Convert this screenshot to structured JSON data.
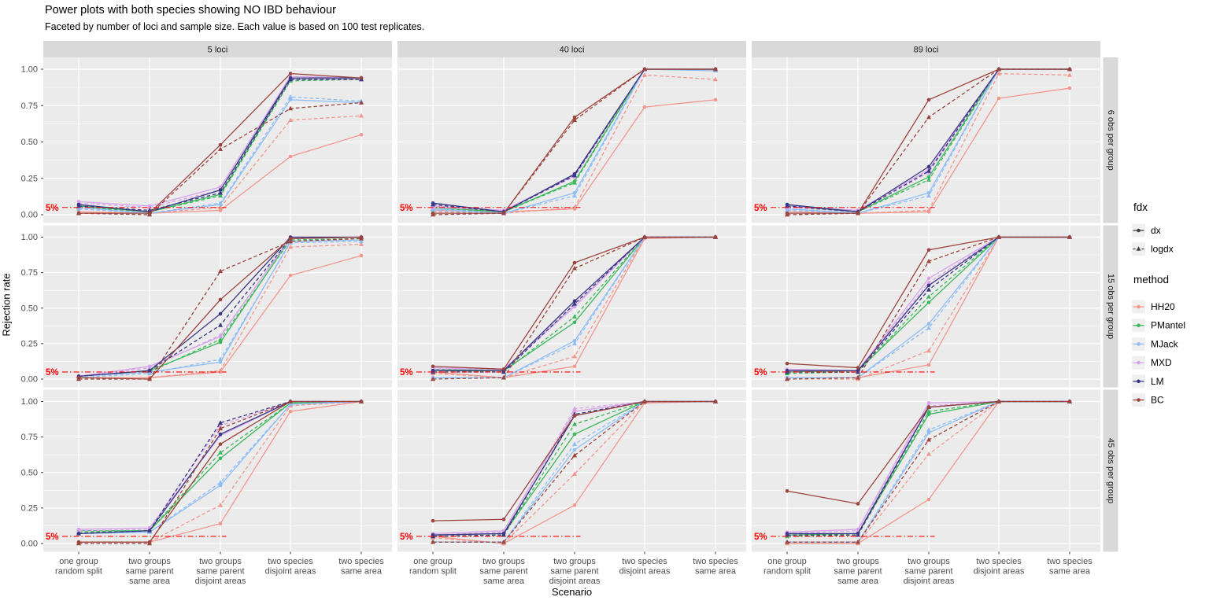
{
  "header": {
    "title": "Power plots with both species showing NO IBD behaviour",
    "subtitle": "Faceted by number of loci and sample size. Each value is based on 100 test replicates."
  },
  "x_axis": {
    "title": "Scenario",
    "categories": [
      [
        "one group",
        "random split"
      ],
      [
        "two groups",
        "same parent",
        "same area"
      ],
      [
        "two groups",
        "same parent",
        "disjoint areas"
      ],
      [
        "two species",
        "disjoint areas"
      ],
      [
        "two species",
        "same area"
      ]
    ]
  },
  "y_axis": {
    "title": "Rejection rate",
    "ticks": [
      "1.00",
      "0.75",
      "0.50",
      "0.25",
      "0.00"
    ],
    "tick_values": [
      1.0,
      0.75,
      0.5,
      0.25,
      0.0
    ]
  },
  "facets": {
    "col_labels": [
      "5 loci",
      "40 loci",
      "89 loci"
    ],
    "row_labels": [
      "6 obs per group",
      "15 obs per group",
      "45 obs per group"
    ]
  },
  "threshold": {
    "label": "5%",
    "value": 0.05,
    "color": "#FF0000"
  },
  "legend": {
    "fdx": {
      "title": "fdx",
      "items": [
        {
          "label": "dx",
          "linetype": "solid",
          "shape": "circle"
        },
        {
          "label": "logdx",
          "linetype": "dashed",
          "shape": "triangle"
        }
      ]
    },
    "method": {
      "title": "method",
      "items": [
        {
          "label": "HH20",
          "color": "#F2978E"
        },
        {
          "label": "PMantel",
          "color": "#3CB85C"
        },
        {
          "label": "MJack",
          "color": "#8FBDF4"
        },
        {
          "label": "MXD",
          "color": "#D7A4EA"
        },
        {
          "label": "LM",
          "color": "#3A3884"
        },
        {
          "label": "BC",
          "color": "#9C453E"
        }
      ]
    }
  },
  "colors": {
    "panel_bg": "#EBEBEB",
    "strip_bg": "#D9D9D9",
    "grid": "#FFFFFF",
    "axis_text": "#4D4D4D",
    "strip_text": "#1A1A1A",
    "legend_key_bg": "#F0F0F0",
    "fdx_glyph": "#404040"
  },
  "chart_data": {
    "type": "line",
    "x_categories": [
      "one group random split",
      "two groups same parent same area",
      "two groups same parent disjoint areas",
      "two species disjoint areas",
      "two species same area"
    ],
    "ylim": [
      0,
      1
    ],
    "grid": true,
    "legend_position": "right",
    "facets": [
      {
        "loci": "5 loci",
        "obs": "6 obs per group",
        "series": {
          "HH20": {
            "dx": [
              0.02,
              0.01,
              0.03,
              0.4,
              0.55
            ],
            "logdx": [
              0.01,
              0.01,
              0.05,
              0.65,
              0.68
            ]
          },
          "PMantel": {
            "dx": [
              0.06,
              0.02,
              0.14,
              0.93,
              0.93
            ],
            "logdx": [
              0.05,
              0.02,
              0.13,
              0.92,
              0.93
            ]
          },
          "MJack": {
            "dx": [
              0.05,
              0.01,
              0.07,
              0.79,
              0.77
            ],
            "logdx": [
              0.04,
              0.01,
              0.08,
              0.81,
              0.78
            ]
          },
          "MXD": {
            "dx": [
              0.09,
              0.06,
              0.19,
              0.95,
              0.94
            ],
            "logdx": [
              0.08,
              0.05,
              0.17,
              0.93,
              0.93
            ]
          },
          "LM": {
            "dx": [
              0.07,
              0.02,
              0.17,
              0.94,
              0.94
            ],
            "logdx": [
              0.06,
              0.03,
              0.15,
              0.93,
              0.93
            ]
          },
          "BC": {
            "dx": [
              0.01,
              0.01,
              0.48,
              0.97,
              0.94
            ],
            "logdx": [
              0.01,
              0.0,
              0.45,
              0.73,
              0.77
            ]
          }
        }
      },
      {
        "loci": "40 loci",
        "obs": "6 obs per group",
        "series": {
          "HH20": {
            "dx": [
              0.03,
              0.02,
              0.04,
              0.74,
              0.79
            ],
            "logdx": [
              0.02,
              0.01,
              0.05,
              0.96,
              0.93
            ]
          },
          "PMantel": {
            "dx": [
              0.05,
              0.02,
              0.23,
              1.0,
              1.0
            ],
            "logdx": [
              0.04,
              0.02,
              0.22,
              1.0,
              1.0
            ]
          },
          "MJack": {
            "dx": [
              0.04,
              0.01,
              0.15,
              1.0,
              0.99
            ],
            "logdx": [
              0.03,
              0.01,
              0.13,
              1.0,
              0.99
            ]
          },
          "MXD": {
            "dx": [
              0.06,
              0.03,
              0.27,
              1.0,
              1.0
            ],
            "logdx": [
              0.05,
              0.03,
              0.26,
              1.0,
              1.0
            ]
          },
          "LM": {
            "dx": [
              0.08,
              0.02,
              0.28,
              1.0,
              1.0
            ],
            "logdx": [
              0.07,
              0.02,
              0.27,
              1.0,
              1.0
            ]
          },
          "BC": {
            "dx": [
              0.01,
              0.01,
              0.67,
              1.0,
              1.0
            ],
            "logdx": [
              0.0,
              0.01,
              0.65,
              1.0,
              1.0
            ]
          }
        }
      },
      {
        "loci": "89 loci",
        "obs": "6 obs per group",
        "series": {
          "HH20": {
            "dx": [
              0.02,
              0.01,
              0.02,
              0.8,
              0.87
            ],
            "logdx": [
              0.0,
              0.01,
              0.03,
              0.97,
              0.96
            ]
          },
          "PMantel": {
            "dx": [
              0.06,
              0.02,
              0.26,
              1.0,
              1.0
            ],
            "logdx": [
              0.05,
              0.02,
              0.24,
              1.0,
              1.0
            ]
          },
          "MJack": {
            "dx": [
              0.04,
              0.01,
              0.15,
              1.0,
              1.0
            ],
            "logdx": [
              0.03,
              0.01,
              0.13,
              1.0,
              1.0
            ]
          },
          "MXD": {
            "dx": [
              0.06,
              0.03,
              0.31,
              1.0,
              1.0
            ],
            "logdx": [
              0.05,
              0.02,
              0.29,
              1.0,
              1.0
            ]
          },
          "LM": {
            "dx": [
              0.07,
              0.02,
              0.33,
              1.0,
              1.0
            ],
            "logdx": [
              0.06,
              0.02,
              0.3,
              1.0,
              1.0
            ]
          },
          "BC": {
            "dx": [
              0.01,
              0.01,
              0.79,
              1.0,
              1.0
            ],
            "logdx": [
              0.0,
              0.01,
              0.67,
              1.0,
              1.0
            ]
          }
        }
      },
      {
        "loci": "5 loci",
        "obs": "15 obs per group",
        "series": {
          "HH20": {
            "dx": [
              0.01,
              0.01,
              0.05,
              0.73,
              0.87
            ],
            "logdx": [
              0.01,
              0.01,
              0.06,
              0.93,
              0.95
            ]
          },
          "PMantel": {
            "dx": [
              0.02,
              0.06,
              0.26,
              0.99,
              1.0
            ],
            "logdx": [
              0.02,
              0.05,
              0.28,
              0.98,
              0.99
            ]
          },
          "MJack": {
            "dx": [
              0.02,
              0.05,
              0.12,
              0.97,
              0.98
            ],
            "logdx": [
              0.01,
              0.04,
              0.14,
              0.96,
              0.97
            ]
          },
          "MXD": {
            "dx": [
              0.02,
              0.09,
              0.3,
              1.0,
              1.0
            ],
            "logdx": [
              0.02,
              0.08,
              0.31,
              0.99,
              1.0
            ]
          },
          "LM": {
            "dx": [
              0.02,
              0.06,
              0.46,
              1.0,
              1.0
            ],
            "logdx": [
              0.02,
              0.06,
              0.38,
              0.99,
              1.0
            ]
          },
          "BC": {
            "dx": [
              0.01,
              0.0,
              0.56,
              0.99,
              1.0
            ],
            "logdx": [
              0.0,
              0.0,
              0.76,
              0.97,
              0.99
            ]
          }
        }
      },
      {
        "loci": "40 loci",
        "obs": "15 obs per group",
        "series": {
          "HH20": {
            "dx": [
              0.05,
              0.01,
              0.09,
              0.99,
              1.0
            ],
            "logdx": [
              0.04,
              0.01,
              0.16,
              1.0,
              1.0
            ]
          },
          "PMantel": {
            "dx": [
              0.07,
              0.06,
              0.4,
              1.0,
              1.0
            ],
            "logdx": [
              0.06,
              0.05,
              0.44,
              1.0,
              1.0
            ]
          },
          "MJack": {
            "dx": [
              0.01,
              0.01,
              0.27,
              1.0,
              1.0
            ],
            "logdx": [
              0.01,
              0.01,
              0.25,
              1.0,
              1.0
            ]
          },
          "MXD": {
            "dx": [
              0.08,
              0.07,
              0.51,
              1.0,
              1.0
            ],
            "logdx": [
              0.07,
              0.07,
              0.52,
              1.0,
              1.0
            ]
          },
          "LM": {
            "dx": [
              0.06,
              0.06,
              0.55,
              1.0,
              1.0
            ],
            "logdx": [
              0.05,
              0.05,
              0.53,
              1.0,
              1.0
            ]
          },
          "BC": {
            "dx": [
              0.09,
              0.07,
              0.82,
              1.0,
              1.0
            ],
            "logdx": [
              0.0,
              0.01,
              0.78,
              1.0,
              1.0
            ]
          }
        }
      },
      {
        "loci": "89 loci",
        "obs": "15 obs per group",
        "series": {
          "HH20": {
            "dx": [
              0.01,
              0.01,
              0.1,
              1.0,
              1.0
            ],
            "logdx": [
              0.0,
              0.0,
              0.2,
              1.0,
              1.0
            ]
          },
          "PMantel": {
            "dx": [
              0.05,
              0.06,
              0.54,
              1.0,
              1.0
            ],
            "logdx": [
              0.04,
              0.05,
              0.58,
              1.0,
              1.0
            ]
          },
          "MJack": {
            "dx": [
              0.01,
              0.01,
              0.39,
              1.0,
              1.0
            ],
            "logdx": [
              0.0,
              0.01,
              0.36,
              1.0,
              1.0
            ]
          },
          "MXD": {
            "dx": [
              0.07,
              0.06,
              0.71,
              1.0,
              1.0
            ],
            "logdx": [
              0.06,
              0.06,
              0.68,
              1.0,
              1.0
            ]
          },
          "LM": {
            "dx": [
              0.06,
              0.06,
              0.66,
              1.0,
              1.0
            ],
            "logdx": [
              0.05,
              0.05,
              0.63,
              1.0,
              1.0
            ]
          },
          "BC": {
            "dx": [
              0.11,
              0.08,
              0.91,
              1.0,
              1.0
            ],
            "logdx": [
              0.0,
              0.01,
              0.83,
              1.0,
              1.0
            ]
          }
        }
      },
      {
        "loci": "5 loci",
        "obs": "45 obs per group",
        "series": {
          "HH20": {
            "dx": [
              0.01,
              0.01,
              0.14,
              0.93,
              1.0
            ],
            "logdx": [
              0.01,
              0.01,
              0.27,
              0.97,
              1.0
            ]
          },
          "PMantel": {
            "dx": [
              0.09,
              0.09,
              0.6,
              0.99,
              1.0
            ],
            "logdx": [
              0.08,
              0.09,
              0.64,
              0.99,
              1.0
            ]
          },
          "MJack": {
            "dx": [
              0.07,
              0.08,
              0.41,
              0.98,
              1.0
            ],
            "logdx": [
              0.07,
              0.08,
              0.43,
              0.98,
              1.0
            ]
          },
          "MXD": {
            "dx": [
              0.1,
              0.11,
              0.76,
              1.0,
              1.0
            ],
            "logdx": [
              0.09,
              0.1,
              0.83,
              1.0,
              1.0
            ]
          },
          "LM": {
            "dx": [
              0.07,
              0.09,
              0.77,
              1.0,
              1.0
            ],
            "logdx": [
              0.07,
              0.09,
              0.85,
              1.0,
              1.0
            ]
          },
          "BC": {
            "dx": [
              0.01,
              0.01,
              0.7,
              1.0,
              1.0
            ],
            "logdx": [
              0.0,
              0.0,
              0.81,
              1.0,
              1.0
            ]
          }
        }
      },
      {
        "loci": "40 loci",
        "obs": "45 obs per group",
        "series": {
          "HH20": {
            "dx": [
              0.05,
              0.0,
              0.27,
              0.99,
              1.0
            ],
            "logdx": [
              0.04,
              0.0,
              0.49,
              1.0,
              1.0
            ]
          },
          "PMantel": {
            "dx": [
              0.06,
              0.07,
              0.77,
              1.0,
              1.0
            ],
            "logdx": [
              0.05,
              0.06,
              0.84,
              1.0,
              1.0
            ]
          },
          "MJack": {
            "dx": [
              0.01,
              0.01,
              0.66,
              1.0,
              1.0
            ],
            "logdx": [
              0.01,
              0.01,
              0.7,
              1.0,
              1.0
            ]
          },
          "MXD": {
            "dx": [
              0.07,
              0.09,
              0.93,
              1.0,
              1.0
            ],
            "logdx": [
              0.06,
              0.08,
              0.95,
              1.0,
              1.0
            ]
          },
          "LM": {
            "dx": [
              0.06,
              0.07,
              0.9,
              1.0,
              1.0
            ],
            "logdx": [
              0.05,
              0.06,
              0.91,
              1.0,
              1.0
            ]
          },
          "BC": {
            "dx": [
              0.16,
              0.17,
              0.9,
              1.0,
              1.0
            ],
            "logdx": [
              0.01,
              0.01,
              0.62,
              1.0,
              1.0
            ]
          }
        }
      },
      {
        "loci": "89 loci",
        "obs": "45 obs per group",
        "series": {
          "HH20": {
            "dx": [
              0.0,
              0.0,
              0.31,
              1.0,
              1.0
            ],
            "logdx": [
              0.0,
              0.0,
              0.63,
              1.0,
              1.0
            ]
          },
          "PMantel": {
            "dx": [
              0.06,
              0.07,
              0.91,
              1.0,
              1.0
            ],
            "logdx": [
              0.05,
              0.06,
              0.93,
              1.0,
              1.0
            ]
          },
          "MJack": {
            "dx": [
              0.01,
              0.01,
              0.78,
              1.0,
              1.0
            ],
            "logdx": [
              0.01,
              0.01,
              0.8,
              1.0,
              1.0
            ]
          },
          "MXD": {
            "dx": [
              0.08,
              0.1,
              0.99,
              1.0,
              1.0
            ],
            "logdx": [
              0.07,
              0.09,
              0.97,
              1.0,
              1.0
            ]
          },
          "LM": {
            "dx": [
              0.07,
              0.07,
              0.96,
              1.0,
              1.0
            ],
            "logdx": [
              0.06,
              0.06,
              0.96,
              1.0,
              1.0
            ]
          },
          "BC": {
            "dx": [
              0.37,
              0.28,
              0.96,
              1.0,
              1.0
            ],
            "logdx": [
              0.01,
              0.01,
              0.73,
              1.0,
              1.0
            ]
          }
        }
      }
    ]
  }
}
